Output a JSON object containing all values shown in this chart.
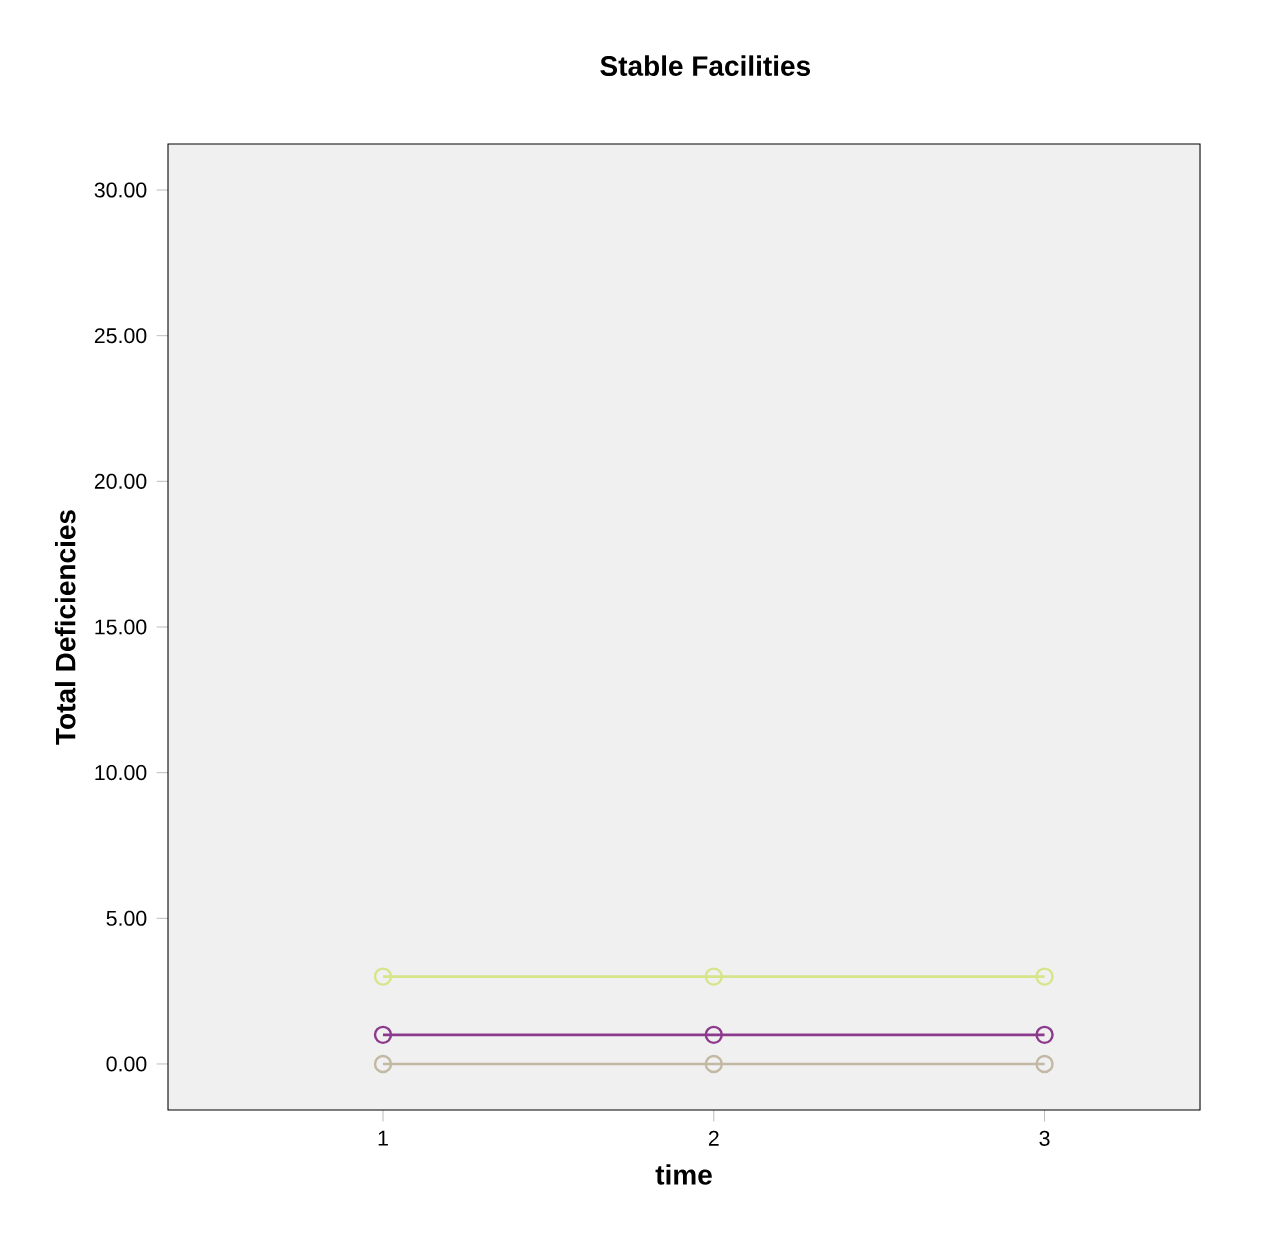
{
  "chart_data": {
    "type": "line",
    "title": "Stable Facilities",
    "xlabel": "time",
    "ylabel": "Total Deficiencies",
    "x": [
      1,
      2,
      3
    ],
    "series": [
      {
        "color": "#d6e48a",
        "values": [
          3,
          3,
          3
        ]
      },
      {
        "color": "#8c3a8c",
        "values": [
          1,
          1,
          1
        ]
      },
      {
        "color": "#c2b8a3",
        "values": [
          0,
          0,
          0
        ]
      }
    ],
    "xlim": [
      0.35,
      3.47
    ],
    "ylim": [
      -1.58,
      31.58
    ],
    "xticks": [
      1,
      2,
      3
    ],
    "yticks": [
      {
        "value": 0,
        "label": "0.00"
      },
      {
        "value": 5,
        "label": "5.00"
      },
      {
        "value": 10,
        "label": "10.00"
      },
      {
        "value": 15,
        "label": "15.00"
      },
      {
        "value": 20,
        "label": "20.00"
      },
      {
        "value": 25,
        "label": "25.00"
      },
      {
        "value": 30,
        "label": "30.00"
      }
    ],
    "marker": "circle",
    "line_style": "solid",
    "grid": false
  }
}
